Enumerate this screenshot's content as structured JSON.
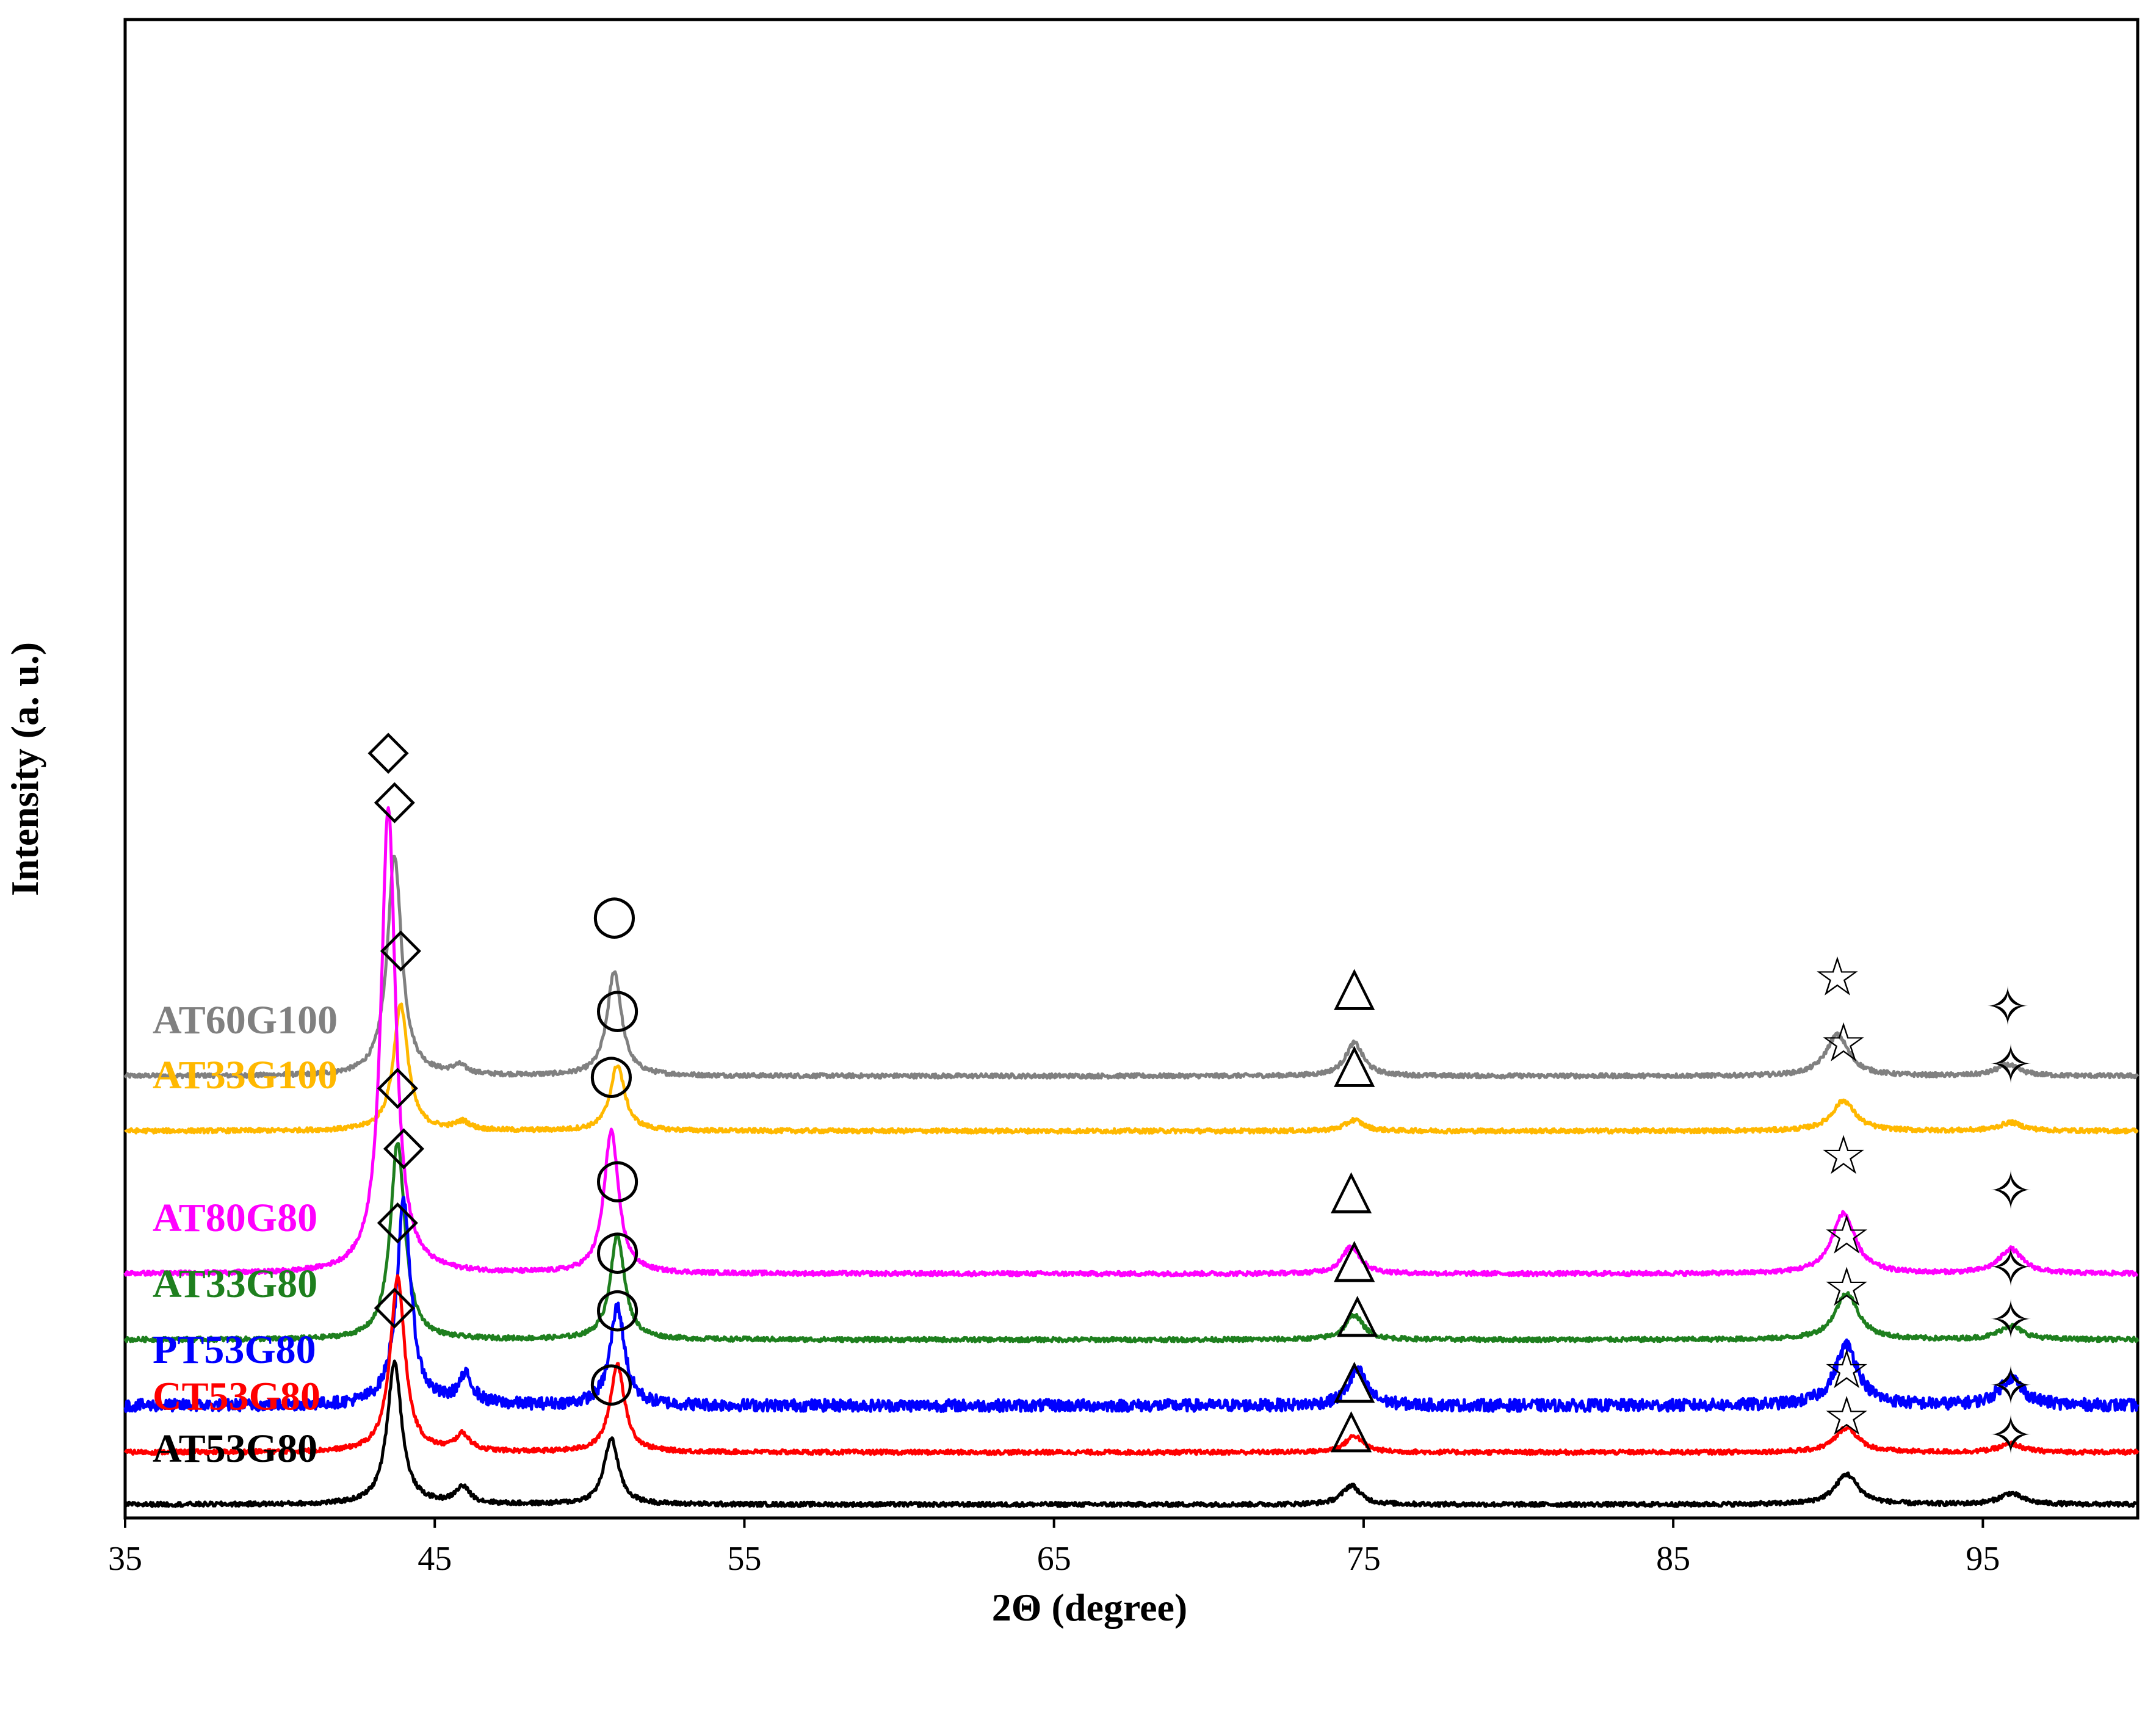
{
  "chart_data": {
    "type": "line",
    "title": "",
    "xlabel": "2Θ (degree)",
    "ylabel": "Intensity (a. u.)",
    "xlim": [
      35,
      100
    ],
    "xticks": [
      35,
      45,
      55,
      65,
      75,
      85,
      95
    ],
    "xtick_labels": [
      "35",
      "45",
      "55",
      "65",
      "75",
      "85",
      "95"
    ],
    "grid": false,
    "legend": "inline labels at left of each trace",
    "peak_markers": [
      {
        "symbol": "diamond",
        "glyph": "◇",
        "two_theta": 43.7
      },
      {
        "symbol": "circle",
        "glyph": "○",
        "two_theta": 50.8
      },
      {
        "symbol": "triangle",
        "glyph": "△",
        "two_theta": 74.7
      },
      {
        "symbol": "star",
        "glyph": "☆",
        "two_theta": 90.5
      },
      {
        "symbol": "four-point-star",
        "glyph": "✧",
        "two_theta": 96.0
      }
    ],
    "series": [
      {
        "name": "AT60G100",
        "color": "#808080",
        "baseline": 7.8,
        "peaks": [
          [
            43.7,
            4.0
          ],
          [
            45.8,
            0.15
          ],
          [
            50.8,
            1.9
          ],
          [
            74.7,
            0.6
          ],
          [
            90.3,
            0.75
          ],
          [
            95.8,
            0.2
          ]
        ]
      },
      {
        "name": "AT33G100",
        "color": "#FFB800",
        "baseline": 6.8,
        "peaks": [
          [
            43.9,
            2.3
          ],
          [
            45.9,
            0.15
          ],
          [
            50.9,
            1.2
          ],
          [
            74.7,
            0.2
          ],
          [
            90.5,
            0.55
          ],
          [
            95.9,
            0.15
          ]
        ]
      },
      {
        "name": "AT80G80",
        "color": "#FF00FF",
        "baseline": 4.2,
        "peaks": [
          [
            43.5,
            8.5
          ],
          [
            50.7,
            2.6
          ],
          [
            74.6,
            0.5
          ],
          [
            90.5,
            1.1
          ],
          [
            95.9,
            0.45
          ]
        ]
      },
      {
        "name": "AT33G80",
        "color": "#1E7F1E",
        "baseline": 3.0,
        "peaks": [
          [
            43.8,
            3.6
          ],
          [
            50.9,
            1.9
          ],
          [
            74.7,
            0.45
          ],
          [
            90.6,
            0.85
          ],
          [
            95.9,
            0.25
          ]
        ]
      },
      {
        "name": "PT53G80",
        "color": "#0000FF",
        "baseline": 1.8,
        "peaks": [
          [
            44.0,
            3.7
          ],
          [
            46.0,
            0.5
          ],
          [
            50.9,
            1.8
          ],
          [
            74.8,
            0.65
          ],
          [
            90.6,
            1.1
          ],
          [
            95.9,
            0.5
          ]
        ]
      },
      {
        "name": "CT53G80",
        "color": "#FF0000",
        "baseline": 0.95,
        "peaks": [
          [
            43.8,
            3.2
          ],
          [
            45.9,
            0.3
          ],
          [
            50.9,
            1.6
          ],
          [
            74.7,
            0.3
          ],
          [
            90.6,
            0.45
          ],
          [
            95.9,
            0.15
          ]
        ]
      },
      {
        "name": "AT53G80",
        "color": "#000000",
        "baseline": 0.0,
        "peaks": [
          [
            43.7,
            2.6
          ],
          [
            45.9,
            0.3
          ],
          [
            50.7,
            1.2
          ],
          [
            74.6,
            0.35
          ],
          [
            90.6,
            0.55
          ],
          [
            95.9,
            0.2
          ]
        ]
      }
    ]
  }
}
